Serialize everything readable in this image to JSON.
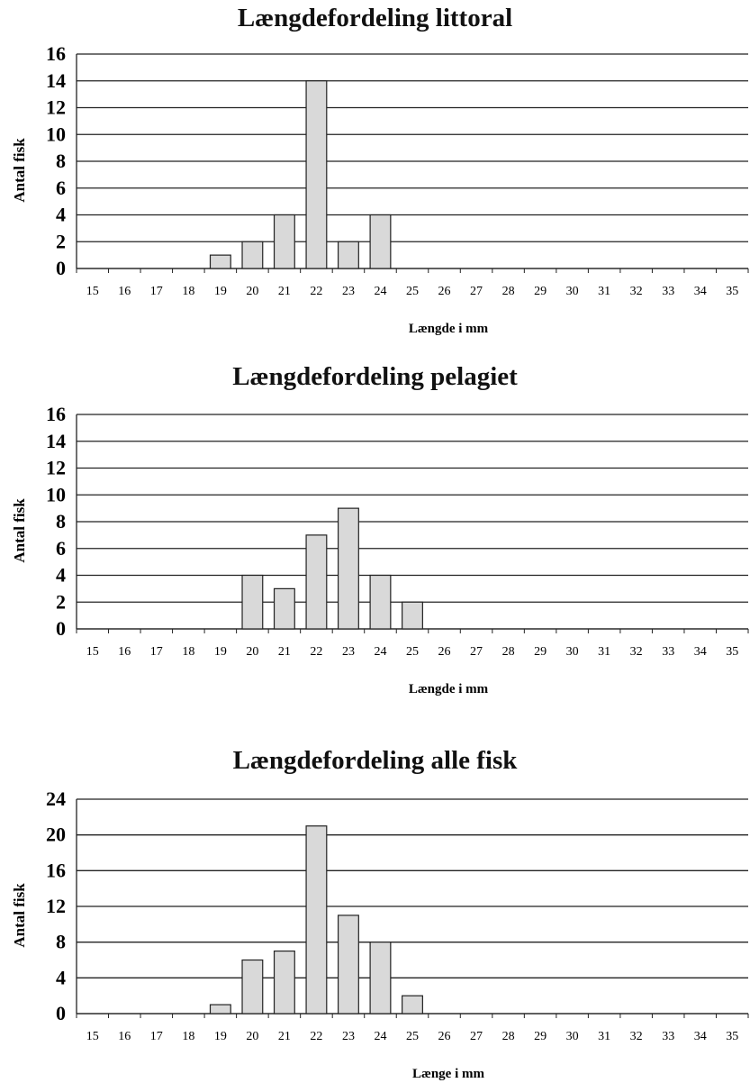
{
  "chart_data": [
    {
      "type": "bar",
      "title": "Længdefordeling littoral",
      "xlabel": "Længde i mm",
      "ylabel": "Antal fisk",
      "categories": [
        "15",
        "16",
        "17",
        "18",
        "19",
        "20",
        "21",
        "22",
        "23",
        "24",
        "25",
        "26",
        "27",
        "28",
        "29",
        "30",
        "31",
        "32",
        "33",
        "34",
        "35"
      ],
      "values": [
        0,
        0,
        0,
        0,
        1,
        2,
        4,
        14,
        2,
        4,
        0,
        0,
        0,
        0,
        0,
        0,
        0,
        0,
        0,
        0,
        0
      ],
      "ylim": [
        0,
        16
      ],
      "yticks": [
        "0",
        "2",
        "4",
        "6",
        "8",
        "10",
        "12",
        "14",
        "16"
      ],
      "grid": true,
      "bar_color": "#d9d9d9"
    },
    {
      "type": "bar",
      "title": "Længdefordeling pelagiet",
      "xlabel": "Længde i mm",
      "ylabel": "Antal fisk",
      "categories": [
        "15",
        "16",
        "17",
        "18",
        "19",
        "20",
        "21",
        "22",
        "23",
        "24",
        "25",
        "26",
        "27",
        "28",
        "29",
        "30",
        "31",
        "32",
        "33",
        "34",
        "35"
      ],
      "values": [
        0,
        0,
        0,
        0,
        0,
        4,
        3,
        7,
        9,
        4,
        2,
        0,
        0,
        0,
        0,
        0,
        0,
        0,
        0,
        0,
        0
      ],
      "ylim": [
        0,
        16
      ],
      "yticks": [
        "0",
        "2",
        "4",
        "6",
        "8",
        "10",
        "12",
        "14",
        "16"
      ],
      "grid": true,
      "bar_color": "#d9d9d9"
    },
    {
      "type": "bar",
      "title": "Længdefordeling alle fisk",
      "xlabel": "Længe i mm",
      "ylabel": "Antal fisk",
      "categories": [
        "15",
        "16",
        "17",
        "18",
        "19",
        "20",
        "21",
        "22",
        "23",
        "24",
        "25",
        "26",
        "27",
        "28",
        "29",
        "30",
        "31",
        "32",
        "33",
        "34",
        "35"
      ],
      "values": [
        0,
        0,
        0,
        0,
        1,
        6,
        7,
        21,
        11,
        8,
        2,
        0,
        0,
        0,
        0,
        0,
        0,
        0,
        0,
        0,
        0
      ],
      "ylim": [
        0,
        24
      ],
      "yticks": [
        "0",
        "4",
        "8",
        "12",
        "16",
        "20",
        "24"
      ],
      "grid": true,
      "bar_color": "#d9d9d9"
    }
  ]
}
